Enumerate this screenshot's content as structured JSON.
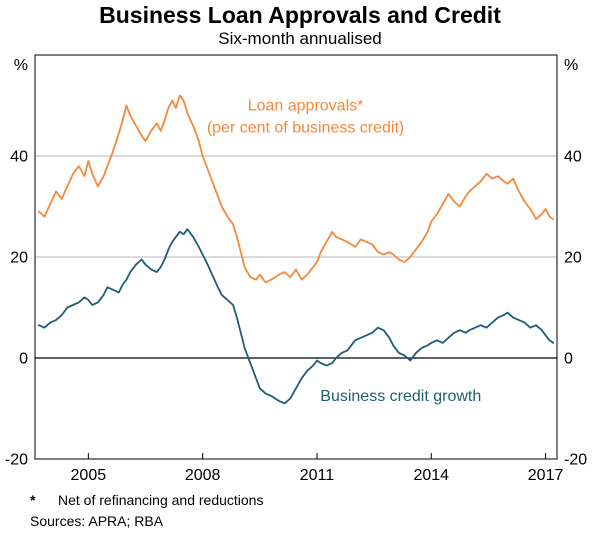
{
  "header": {
    "title": "Business Loan Approvals and Credit",
    "subtitle": "Six-month annualised"
  },
  "footnotes": {
    "marker": "*",
    "note": "Net of refinancing and reductions",
    "sources": "Sources: APRA; RBA"
  },
  "chart_data": {
    "type": "line",
    "title": "Business Loan Approvals and Credit",
    "subtitle": "Six-month annualised",
    "unit_left": "%",
    "unit_right": "%",
    "xlim": [
      2003.6,
      2017.3
    ],
    "ylim": [
      -20,
      60
    ],
    "yticks": [
      -20,
      0,
      20,
      40
    ],
    "xticks": [
      2005,
      2008,
      2011,
      2014,
      2017
    ],
    "gridlines": [
      20,
      40
    ],
    "zero_line": 0,
    "grid_on": true,
    "legend_position": "inline-annotations",
    "colors": {
      "loan_approvals": "#f5883a",
      "business_credit": "#1d5e73",
      "grid": "#b7b7b7",
      "axis": "#000000"
    },
    "x": [
      2003.7,
      2003.85,
      2004.0,
      2004.15,
      2004.3,
      2004.45,
      2004.6,
      2004.75,
      2004.9,
      2005.0,
      2005.1,
      2005.25,
      2005.4,
      2005.5,
      2005.65,
      2005.8,
      2005.9,
      2006.0,
      2006.1,
      2006.25,
      2006.4,
      2006.5,
      2006.65,
      2006.8,
      2006.9,
      2007.0,
      2007.1,
      2007.2,
      2007.3,
      2007.4,
      2007.5,
      2007.6,
      2007.75,
      2007.9,
      2008.0,
      2008.1,
      2008.25,
      2008.4,
      2008.5,
      2008.65,
      2008.8,
      2008.9,
      2009.0,
      2009.1,
      2009.25,
      2009.4,
      2009.5,
      2009.65,
      2009.8,
      2009.9,
      2010.0,
      2010.15,
      2010.3,
      2010.45,
      2010.6,
      2010.75,
      2010.9,
      2011.0,
      2011.1,
      2011.25,
      2011.4,
      2011.5,
      2011.65,
      2011.8,
      2011.9,
      2012.0,
      2012.15,
      2012.3,
      2012.45,
      2012.6,
      2012.75,
      2012.9,
      2013.0,
      2013.15,
      2013.3,
      2013.45,
      2013.6,
      2013.75,
      2013.9,
      2014.0,
      2014.15,
      2014.3,
      2014.45,
      2014.6,
      2014.75,
      2014.9,
      2015.0,
      2015.15,
      2015.3,
      2015.45,
      2015.6,
      2015.75,
      2015.9,
      2016.0,
      2016.15,
      2016.3,
      2016.45,
      2016.6,
      2016.75,
      2016.9,
      2017.0,
      2017.1,
      2017.2
    ],
    "series": [
      {
        "name": "Loan approvals* (per cent of business credit)",
        "key": "loan-approvals",
        "color": "#f5883a",
        "values": [
          29,
          28,
          30.5,
          33,
          31.5,
          34,
          36.5,
          38,
          36,
          39,
          36.5,
          34,
          36,
          38,
          41,
          44.5,
          47,
          50,
          48,
          46,
          44,
          43,
          45,
          46.5,
          45,
          47,
          49.5,
          51,
          49.5,
          52,
          51,
          48.5,
          46,
          43,
          40,
          38,
          35,
          32,
          30,
          28,
          26.5,
          24,
          21,
          18,
          16,
          15.5,
          16.5,
          15,
          15.5,
          16,
          16.5,
          17,
          16,
          17.5,
          15.5,
          16.5,
          18,
          19,
          21,
          23,
          25,
          24,
          23.5,
          23,
          22.5,
          22,
          23.5,
          23,
          22.5,
          21,
          20.5,
          21,
          20.5,
          19.5,
          19,
          20,
          21.5,
          23,
          25,
          27,
          28.5,
          30.5,
          32.5,
          31,
          30,
          32,
          33,
          34,
          35,
          36.5,
          35.5,
          36,
          35,
          34.5,
          35.5,
          33,
          31,
          29.5,
          27.5,
          28.5,
          29.5,
          28,
          27.5
        ]
      },
      {
        "name": "Business credit growth",
        "key": "business-credit-growth",
        "color": "#1d5e73",
        "values": [
          6.5,
          6,
          7,
          7.5,
          8.5,
          10,
          10.5,
          11,
          12,
          11.5,
          10.5,
          11,
          12.5,
          14,
          13.5,
          13,
          14.5,
          15.5,
          17,
          18.5,
          19.5,
          18.5,
          17.5,
          17,
          18,
          19.5,
          21.5,
          23,
          24,
          25,
          24.5,
          25.5,
          24,
          22,
          20.5,
          19,
          16.5,
          14,
          12.5,
          11.5,
          10.5,
          8,
          5,
          2,
          -1,
          -4,
          -6,
          -7,
          -7.5,
          -8,
          -8.5,
          -9,
          -8,
          -6,
          -4,
          -2.5,
          -1.5,
          -0.5,
          -1,
          -1.5,
          -1,
          0,
          1,
          1.5,
          2.5,
          3.5,
          4,
          4.5,
          5,
          6,
          5.5,
          4,
          2.5,
          1,
          0.5,
          -0.5,
          1,
          2,
          2.5,
          3,
          3.5,
          3,
          4,
          5,
          5.5,
          5,
          5.5,
          6,
          6.5,
          6,
          7,
          8,
          8.5,
          9,
          8,
          7.5,
          7,
          6,
          6.5,
          5.5,
          4.5,
          3.5,
          3
        ]
      }
    ],
    "annotations": [
      {
        "key": "loan-approvals",
        "lines": [
          "Loan approvals*",
          "(per cent of business credit)"
        ],
        "x": 2010.7,
        "y": 49,
        "color": "#f5883a",
        "anchor": "middle"
      },
      {
        "key": "business-credit-growth",
        "lines": [
          "Business credit growth"
        ],
        "x": 2013.2,
        "y": -8.5,
        "color": "#1d5e73",
        "anchor": "middle"
      }
    ]
  }
}
